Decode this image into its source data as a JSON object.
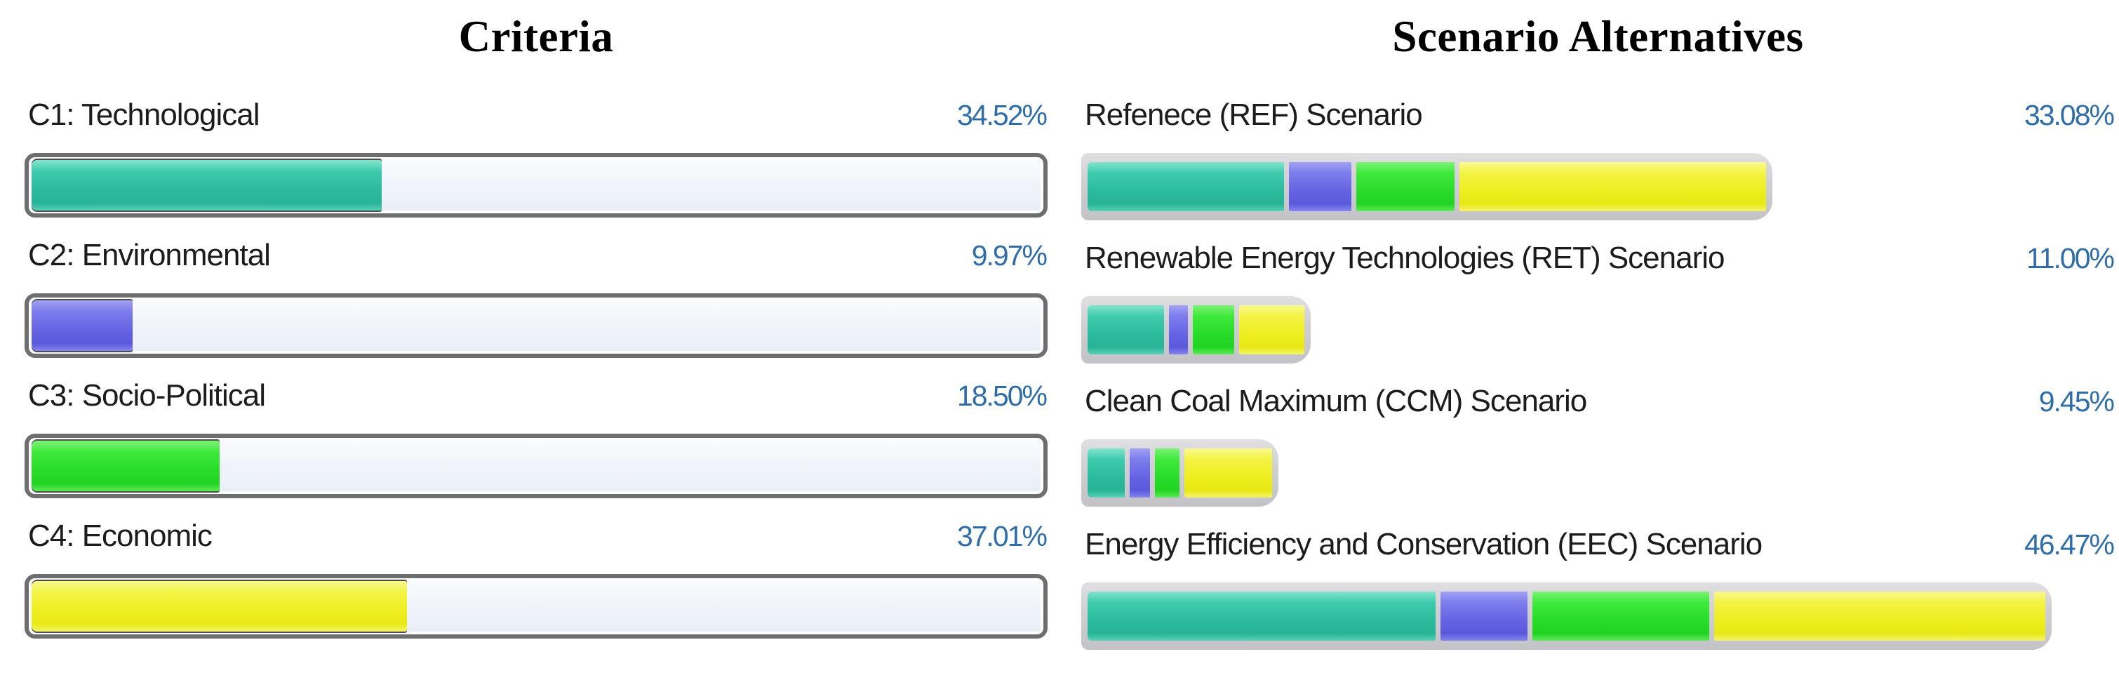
{
  "left_panel": {
    "title": "Criteria",
    "items": [
      {
        "label": "C1: Technological",
        "value": "34.52%",
        "percent": 34.52,
        "color": "teal"
      },
      {
        "label": "C2: Environmental",
        "value": "9.97%",
        "percent": 9.97,
        "color": "blue"
      },
      {
        "label": "C3: Socio-Political",
        "value": "18.50%",
        "percent": 18.5,
        "color": "green"
      },
      {
        "label": "C4: Economic",
        "value": "37.01%",
        "percent": 37.01,
        "color": "yellow"
      }
    ]
  },
  "right_panel": {
    "title": "Scenario Alternatives",
    "max_percent": 46.47,
    "items": [
      {
        "label": "Refenece (REF) Scenario",
        "value": "33.08%",
        "percent": 33.08,
        "segments": [
          {
            "color": "teal",
            "share": 29.5
          },
          {
            "color": "blue",
            "share": 9.3
          },
          {
            "color": "green",
            "share": 14.8
          },
          {
            "color": "yellow",
            "share": 45.9
          }
        ]
      },
      {
        "label": "Renewable Energy Technologies (RET) Scenario",
        "value": "11.00%",
        "percent": 11.0,
        "segments": [
          {
            "color": "teal",
            "share": 37.8
          },
          {
            "color": "blue",
            "share": 9.3
          },
          {
            "color": "green",
            "share": 20.6
          },
          {
            "color": "yellow",
            "share": 32.3
          }
        ]
      },
      {
        "label": "Clean Coal Maximum (CCM) Scenario",
        "value": "9.45%",
        "percent": 9.45,
        "segments": [
          {
            "color": "teal",
            "share": 21.9
          },
          {
            "color": "blue",
            "share": 12.0
          },
          {
            "color": "green",
            "share": 14.3
          },
          {
            "color": "yellow",
            "share": 51.8
          }
        ]
      },
      {
        "label": "Energy Efficiency and Conservation (EEC) Scenario",
        "value": "46.47%",
        "percent": 46.47,
        "segments": [
          {
            "color": "teal",
            "share": 36.9
          },
          {
            "color": "blue",
            "share": 9.2
          },
          {
            "color": "green",
            "share": 18.8
          },
          {
            "color": "yellow",
            "share": 35.1
          }
        ]
      }
    ]
  },
  "colors": {
    "teal": "#2fc0a2",
    "blue": "#6b6ae8",
    "green": "#2ce32c",
    "yellow": "#efef29",
    "bar_track": "#f0f4fa",
    "bar_track_border": "#6e6e6e",
    "stacked_bar_frame": "#cfcfd3",
    "value_text": "#2e6da8",
    "label_text": "#1c1c1c",
    "heading_text": "#000000"
  },
  "chart_data": [
    {
      "type": "bar",
      "orientation": "horizontal",
      "title": "Criteria",
      "categories": [
        "C1: Technological",
        "C2: Environmental",
        "C3: Socio-Political",
        "C4: Economic"
      ],
      "values": [
        34.52,
        9.97,
        18.5,
        37.01
      ],
      "value_labels": [
        "34.52%",
        "9.97%",
        "18.50%",
        "37.01%"
      ],
      "xlim": [
        0,
        100
      ],
      "bar_colors": [
        "#2fc0a2",
        "#6b6ae8",
        "#2ce32c",
        "#efef29"
      ],
      "grid": false,
      "legend": false
    },
    {
      "type": "bar",
      "subtype": "stacked",
      "orientation": "horizontal",
      "title": "Scenario Alternatives",
      "categories": [
        "Refenece (REF) Scenario",
        "Renewable Energy Technologies (RET) Scenario",
        "Clean Coal Maximum (CCM) Scenario",
        "Energy Efficiency and Conservation (EEC) Scenario"
      ],
      "values": [
        33.08,
        11.0,
        9.45,
        46.47
      ],
      "value_labels": [
        "33.08%",
        "11.00%",
        "9.45%",
        "46.47%"
      ],
      "series": [
        {
          "name": "C1: Technological contribution",
          "color": "#2fc0a2",
          "shares_pct_of_bar": [
            29.5,
            37.8,
            21.9,
            36.9
          ]
        },
        {
          "name": "C2: Environmental contribution",
          "color": "#6b6ae8",
          "shares_pct_of_bar": [
            9.3,
            9.3,
            12.0,
            9.2
          ]
        },
        {
          "name": "C3: Socio-Political contribution",
          "color": "#2ce32c",
          "shares_pct_of_bar": [
            14.8,
            20.6,
            14.3,
            18.8
          ]
        },
        {
          "name": "C4: Economic contribution",
          "color": "#efef29",
          "shares_pct_of_bar": [
            45.9,
            32.3,
            51.8,
            35.1
          ]
        }
      ],
      "bar_length_scale": "proportional to value, max value 46.47 spans full width",
      "grid": false,
      "legend": false
    }
  ]
}
